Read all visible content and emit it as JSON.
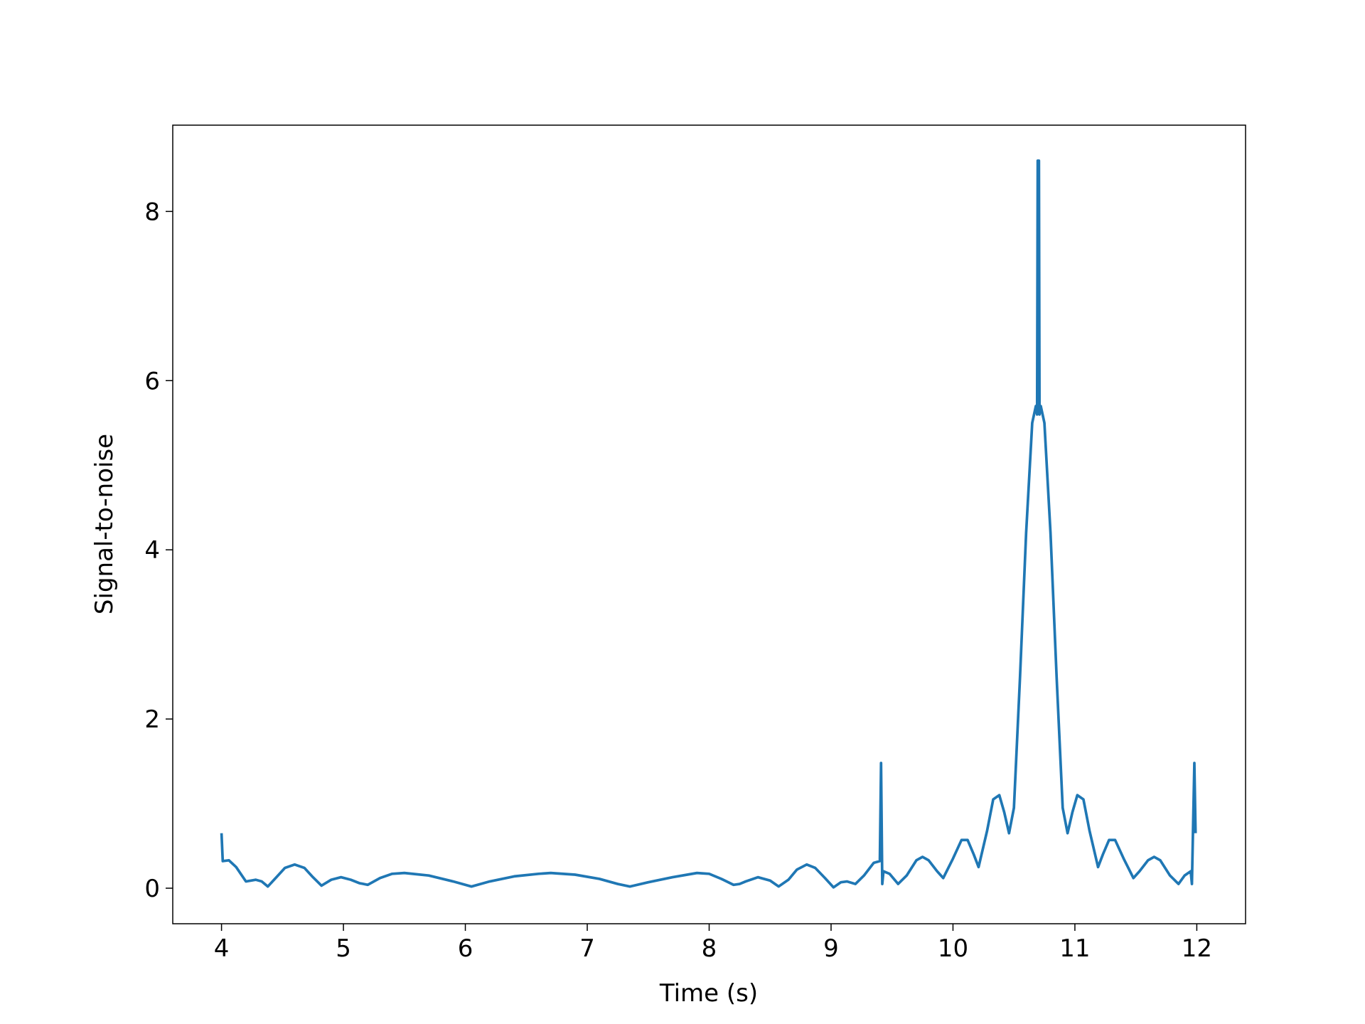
{
  "chart_data": {
    "type": "line",
    "xlabel": "Time (s)",
    "ylabel": "Signal-to-noise",
    "xlim": [
      3.6,
      12.4
    ],
    "ylim": [
      -0.42,
      9.02
    ],
    "xticks": [
      4,
      5,
      6,
      7,
      8,
      9,
      10,
      11,
      12
    ],
    "yticks": [
      0,
      2,
      4,
      6,
      8
    ],
    "x": [
      4.0,
      4.01,
      4.06,
      4.12,
      4.2,
      4.28,
      4.33,
      4.38,
      4.45,
      4.52,
      4.6,
      4.68,
      4.75,
      4.82,
      4.9,
      4.98,
      5.06,
      5.13,
      5.2,
      5.3,
      5.4,
      5.5,
      5.7,
      5.9,
      6.05,
      6.2,
      6.4,
      6.6,
      6.7,
      6.9,
      7.1,
      7.25,
      7.35,
      7.5,
      7.7,
      7.9,
      8.0,
      8.1,
      8.2,
      8.25,
      8.3,
      8.4,
      8.5,
      8.57,
      8.65,
      8.72,
      8.8,
      8.87,
      8.95,
      9.02,
      9.08,
      9.13,
      9.2,
      9.27,
      9.35,
      9.4,
      9.41,
      9.42,
      9.43,
      9.48,
      9.55,
      9.62,
      9.7,
      9.75,
      9.8,
      9.87,
      9.92,
      10.0,
      10.07,
      10.12,
      10.17,
      10.21,
      10.28,
      10.33,
      10.38,
      10.42,
      10.46,
      10.5,
      10.55,
      10.6,
      10.65,
      10.68,
      10.69,
      10.695,
      10.705,
      10.71,
      10.72,
      10.75,
      10.8,
      10.85,
      10.9,
      10.94,
      10.98,
      11.02,
      11.07,
      11.12,
      11.19,
      11.23,
      11.28,
      11.33,
      11.4,
      11.48,
      11.53,
      11.6,
      11.65,
      11.7,
      11.78,
      11.85,
      11.9,
      11.95,
      11.96,
      11.98,
      11.99
    ],
    "series": [
      {
        "color": "#1f77b4",
        "values": [
          0.65,
          0.32,
          0.33,
          0.25,
          0.08,
          0.1,
          0.08,
          0.02,
          0.13,
          0.24,
          0.28,
          0.24,
          0.13,
          0.03,
          0.1,
          0.13,
          0.1,
          0.06,
          0.04,
          0.12,
          0.17,
          0.18,
          0.15,
          0.08,
          0.02,
          0.08,
          0.14,
          0.17,
          0.18,
          0.16,
          0.11,
          0.05,
          0.02,
          0.07,
          0.13,
          0.18,
          0.17,
          0.11,
          0.04,
          0.05,
          0.08,
          0.13,
          0.09,
          0.02,
          0.1,
          0.22,
          0.28,
          0.24,
          0.12,
          0.01,
          0.07,
          0.08,
          0.05,
          0.15,
          0.3,
          0.32,
          1.48,
          0.05,
          0.2,
          0.17,
          0.05,
          0.15,
          0.33,
          0.37,
          0.33,
          0.2,
          0.12,
          0.35,
          0.57,
          0.57,
          0.4,
          0.25,
          0.68,
          1.05,
          1.1,
          0.9,
          0.65,
          0.95,
          2.5,
          4.2,
          5.5,
          5.7,
          5.6,
          8.6,
          8.6,
          5.6,
          5.7,
          5.5,
          4.2,
          2.5,
          0.95,
          0.65,
          0.9,
          1.1,
          1.05,
          0.68,
          0.25,
          0.4,
          0.57,
          0.57,
          0.35,
          0.12,
          0.2,
          0.33,
          0.37,
          0.33,
          0.15,
          0.05,
          0.15,
          0.2,
          0.05,
          1.48,
          0.65
        ]
      }
    ]
  }
}
